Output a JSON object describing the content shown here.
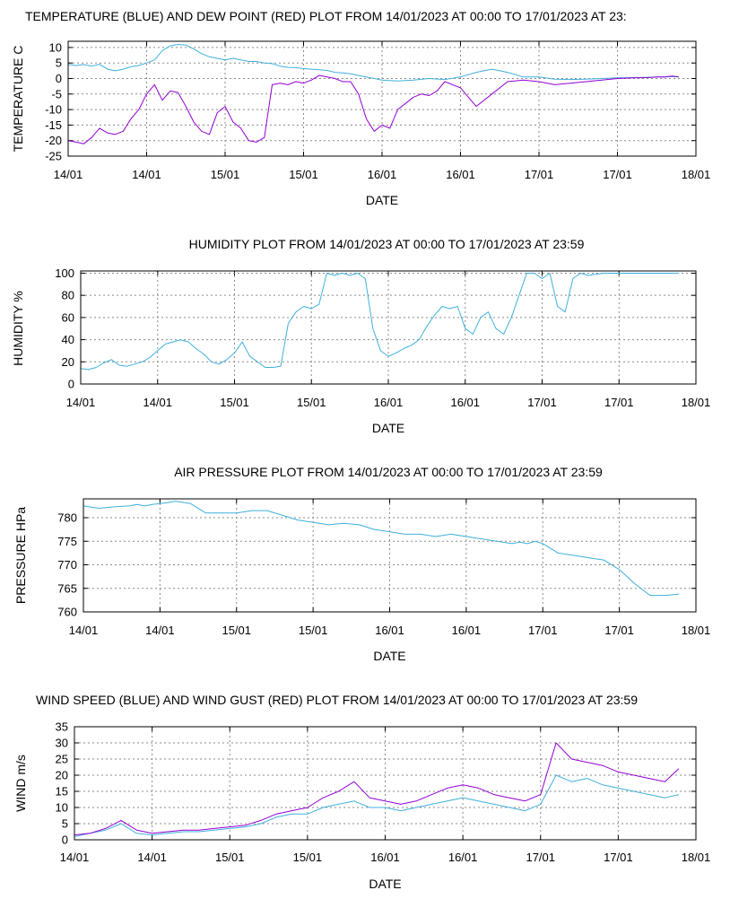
{
  "colors": {
    "blue": "#3fb0dc",
    "red": "#9400d3",
    "background": "#ffffff",
    "grid": "#8a8a8a"
  },
  "chart_data": [
    {
      "id": "temperature",
      "type": "line",
      "title": "TEMPERATURE (BLUE) AND DEW POINT (RED) PLOT FROM 14/01/2023 AT 00:00 TO 17/01/2023 AT 23:",
      "xlabel": "DATE",
      "ylabel": "TEMPERATURE C",
      "xlim": [
        0,
        4
      ],
      "ylim": [
        -25,
        12
      ],
      "yticks": [
        10,
        5,
        0,
        -5,
        -10,
        -15,
        -20,
        -25
      ],
      "xtick_labels": [
        "14/01",
        "14/01",
        "15/01",
        "15/01",
        "16/01",
        "16/01",
        "17/01",
        "17/01",
        "18/01"
      ],
      "grid": true,
      "series": [
        {
          "color": "blue",
          "x": [
            0,
            0.05,
            0.1,
            0.15,
            0.2,
            0.25,
            0.3,
            0.35,
            0.4,
            0.45,
            0.5,
            0.55,
            0.6,
            0.65,
            0.7,
            0.75,
            0.8,
            0.85,
            0.9,
            0.95,
            1.0,
            1.05,
            1.1,
            1.15,
            1.2,
            1.25,
            1.3,
            1.35,
            1.4,
            1.45,
            1.5,
            1.55,
            1.6,
            1.65,
            1.7,
            1.75,
            1.8,
            1.85,
            1.9,
            1.95,
            2.0,
            2.1,
            2.2,
            2.3,
            2.4,
            2.5,
            2.6,
            2.7,
            2.8,
            2.9,
            3.0,
            3.1,
            3.2,
            3.3,
            3.4,
            3.5,
            3.6,
            3.7,
            3.75,
            3.8,
            3.85,
            3.89
          ],
          "values": [
            4.5,
            4.2,
            4.5,
            4.0,
            4.6,
            3.0,
            2.5,
            3.0,
            3.8,
            4.2,
            5.0,
            6.0,
            9.0,
            10.5,
            11.0,
            10.8,
            9.5,
            8.0,
            7.0,
            6.5,
            6.0,
            6.5,
            6.0,
            5.5,
            5.5,
            5.0,
            4.8,
            4.0,
            3.6,
            3.5,
            3.2,
            3.0,
            2.8,
            2.6,
            2.0,
            1.8,
            1.5,
            1.0,
            0.5,
            0.0,
            -0.5,
            -0.8,
            -0.5,
            0.0,
            -0.3,
            0.5,
            2.0,
            3.0,
            2.0,
            0.5,
            0.5,
            -0.2,
            -0.3,
            -0.2,
            0.0,
            0.2,
            0.3,
            0.4,
            0.5,
            0.5,
            0.6,
            0.5
          ]
        },
        {
          "color": "red",
          "x": [
            0,
            0.05,
            0.1,
            0.15,
            0.2,
            0.25,
            0.3,
            0.35,
            0.4,
            0.45,
            0.5,
            0.55,
            0.6,
            0.65,
            0.7,
            0.75,
            0.8,
            0.85,
            0.9,
            0.95,
            1.0,
            1.05,
            1.1,
            1.15,
            1.2,
            1.25,
            1.3,
            1.35,
            1.4,
            1.45,
            1.5,
            1.55,
            1.6,
            1.65,
            1.7,
            1.75,
            1.8,
            1.85,
            1.9,
            1.95,
            2.0,
            2.05,
            2.1,
            2.15,
            2.2,
            2.25,
            2.3,
            2.35,
            2.4,
            2.5,
            2.6,
            2.7,
            2.8,
            2.9,
            3.0,
            3.1,
            3.2,
            3.3,
            3.4,
            3.5,
            3.6,
            3.7,
            3.75,
            3.8,
            3.85,
            3.89
          ],
          "values": [
            -20.0,
            -20.5,
            -21.0,
            -19.0,
            -16.0,
            -17.5,
            -18.0,
            -17.0,
            -13.0,
            -10.0,
            -5.0,
            -2.0,
            -7.0,
            -4.0,
            -4.5,
            -9.0,
            -14.0,
            -17.0,
            -18.0,
            -11.0,
            -9.0,
            -14.0,
            -16.0,
            -20.0,
            -20.5,
            -19.0,
            -2.0,
            -1.5,
            -2.0,
            -1.0,
            -1.5,
            -0.5,
            1.0,
            0.5,
            0.0,
            -1.0,
            -1.0,
            -5.0,
            -13.0,
            -17.0,
            -15.0,
            -16.0,
            -10.0,
            -8.0,
            -6.0,
            -5.0,
            -5.5,
            -4.0,
            -1.0,
            -3.0,
            -9.0,
            -5.0,
            -1.0,
            -0.5,
            -1.0,
            -2.0,
            -1.5,
            -1.0,
            -0.5,
            0.0,
            0.2,
            0.3,
            0.5,
            0.5,
            0.8,
            0.5
          ]
        }
      ]
    },
    {
      "id": "humidity",
      "type": "line",
      "title": "HUMIDITY PLOT FROM 14/01/2023 AT 00:00 TO 17/01/2023 AT 23:59",
      "xlabel": "DATE",
      "ylabel": "HUMIDITY %",
      "xlim": [
        0,
        4
      ],
      "ylim": [
        0,
        102
      ],
      "yticks": [
        100,
        80,
        60,
        40,
        20,
        0
      ],
      "xtick_labels": [
        "14/01",
        "14/01",
        "15/01",
        "15/01",
        "16/01",
        "16/01",
        "17/01",
        "17/01",
        "18/01"
      ],
      "grid": true,
      "series": [
        {
          "color": "blue",
          "x": [
            0,
            0.05,
            0.1,
            0.15,
            0.2,
            0.25,
            0.3,
            0.35,
            0.4,
            0.45,
            0.5,
            0.55,
            0.6,
            0.65,
            0.7,
            0.75,
            0.8,
            0.85,
            0.9,
            0.95,
            1.0,
            1.05,
            1.1,
            1.15,
            1.2,
            1.25,
            1.3,
            1.35,
            1.4,
            1.45,
            1.5,
            1.55,
            1.6,
            1.65,
            1.7,
            1.75,
            1.8,
            1.85,
            1.9,
            1.95,
            2.0,
            2.05,
            2.1,
            2.15,
            2.2,
            2.25,
            2.3,
            2.35,
            2.4,
            2.45,
            2.5,
            2.55,
            2.6,
            2.65,
            2.7,
            2.75,
            2.8,
            2.85,
            2.9,
            2.95,
            3.0,
            3.05,
            3.1,
            3.15,
            3.2,
            3.25,
            3.3,
            3.4,
            3.5,
            3.6,
            3.7,
            3.8,
            3.89
          ],
          "values": [
            14,
            13,
            15,
            19,
            22,
            17,
            16,
            18,
            20,
            24,
            30,
            36,
            38,
            40,
            38,
            32,
            27,
            20,
            18,
            22,
            28,
            38,
            25,
            20,
            15,
            15,
            16,
            55,
            65,
            70,
            68,
            72,
            100,
            98,
            100,
            98,
            100,
            95,
            50,
            30,
            25,
            28,
            32,
            35,
            40,
            52,
            62,
            70,
            68,
            70,
            50,
            45,
            60,
            65,
            50,
            45,
            60,
            80,
            100,
            100,
            95,
            100,
            70,
            65,
            95,
            100,
            98,
            100,
            100,
            100,
            100,
            100,
            100
          ]
        }
      ]
    },
    {
      "id": "pressure",
      "type": "line",
      "title": "AIR PRESSURE PLOT FROM 14/01/2023 AT 00:00 TO 17/01/2023 AT 23:59",
      "xlabel": "DATE",
      "ylabel": "PRESSURE HPa",
      "xlim": [
        0,
        4
      ],
      "ylim": [
        760,
        784
      ],
      "yticks": [
        780,
        775,
        770,
        765,
        760
      ],
      "xtick_labels": [
        "14/01",
        "14/01",
        "15/01",
        "15/01",
        "16/01",
        "16/01",
        "17/01",
        "17/01",
        "18/01"
      ],
      "grid": true,
      "series": [
        {
          "color": "blue",
          "x": [
            0,
            0.1,
            0.2,
            0.3,
            0.35,
            0.4,
            0.45,
            0.5,
            0.55,
            0.6,
            0.7,
            0.8,
            0.9,
            1.0,
            1.1,
            1.2,
            1.3,
            1.4,
            1.5,
            1.6,
            1.7,
            1.8,
            1.9,
            2.0,
            2.1,
            2.2,
            2.3,
            2.4,
            2.5,
            2.6,
            2.7,
            2.8,
            2.85,
            2.9,
            2.95,
            3.0,
            3.05,
            3.1,
            3.2,
            3.3,
            3.4,
            3.5,
            3.6,
            3.7,
            3.8,
            3.89
          ],
          "values": [
            782.5,
            782.0,
            782.3,
            782.5,
            782.8,
            782.5,
            782.8,
            783.0,
            783.2,
            783.5,
            783.0,
            781.0,
            781.0,
            781.0,
            781.5,
            781.5,
            780.5,
            779.5,
            779.0,
            778.5,
            778.8,
            778.5,
            777.5,
            777.0,
            776.5,
            776.5,
            776.0,
            776.5,
            776.0,
            775.5,
            775.0,
            774.5,
            774.8,
            774.5,
            775.0,
            774.5,
            773.5,
            772.5,
            772.0,
            771.5,
            771.0,
            769.0,
            766.0,
            763.5,
            763.5,
            763.8
          ]
        }
      ]
    },
    {
      "id": "wind",
      "type": "line",
      "title": "WIND SPEED (BLUE) AND WIND GUST (RED) PLOT FROM 14/01/2023 AT 00:00 TO 17/01/2023 AT 23:59",
      "xlabel": "DATE",
      "ylabel": "WIND m/s",
      "xlim": [
        0,
        4
      ],
      "ylim": [
        0,
        35
      ],
      "yticks": [
        35,
        30,
        25,
        20,
        15,
        10,
        5,
        0
      ],
      "xtick_labels": [
        "14/01",
        "14/01",
        "15/01",
        "15/01",
        "16/01",
        "16/01",
        "17/01",
        "17/01",
        "18/01"
      ],
      "grid": true,
      "series": [
        {
          "color": "blue",
          "x": [
            0,
            0.1,
            0.2,
            0.3,
            0.4,
            0.5,
            0.6,
            0.7,
            0.8,
            0.9,
            1.0,
            1.1,
            1.2,
            1.3,
            1.4,
            1.5,
            1.6,
            1.7,
            1.8,
            1.9,
            2.0,
            2.1,
            2.2,
            2.3,
            2.4,
            2.5,
            2.6,
            2.7,
            2.8,
            2.9,
            3.0,
            3.1,
            3.2,
            3.3,
            3.4,
            3.5,
            3.6,
            3.7,
            3.8,
            3.89
          ],
          "values": [
            1,
            2,
            3,
            5,
            2,
            1.5,
            2,
            2.5,
            2.5,
            3,
            3.5,
            4,
            5,
            7,
            8,
            8,
            10,
            11,
            12,
            10,
            10,
            9,
            10,
            11,
            12,
            13,
            12,
            11,
            10,
            9,
            11,
            20,
            18,
            19,
            17,
            16,
            15,
            14,
            13,
            14
          ]
        },
        {
          "color": "red",
          "x": [
            0,
            0.1,
            0.2,
            0.3,
            0.4,
            0.5,
            0.6,
            0.7,
            0.8,
            0.9,
            1.0,
            1.1,
            1.2,
            1.3,
            1.4,
            1.5,
            1.6,
            1.7,
            1.8,
            1.9,
            2.0,
            2.1,
            2.2,
            2.3,
            2.4,
            2.5,
            2.6,
            2.7,
            2.8,
            2.9,
            3.0,
            3.1,
            3.2,
            3.3,
            3.4,
            3.5,
            3.6,
            3.7,
            3.8,
            3.89
          ],
          "values": [
            1.5,
            2,
            3.5,
            6,
            3,
            2,
            2.5,
            3,
            3,
            3.5,
            4,
            4.5,
            6,
            8,
            9,
            10,
            13,
            15,
            18,
            13,
            12,
            11,
            12,
            14,
            16,
            17,
            16,
            14,
            13,
            12,
            14,
            30,
            25,
            24,
            23,
            21,
            20,
            19,
            18,
            22
          ]
        }
      ]
    }
  ]
}
